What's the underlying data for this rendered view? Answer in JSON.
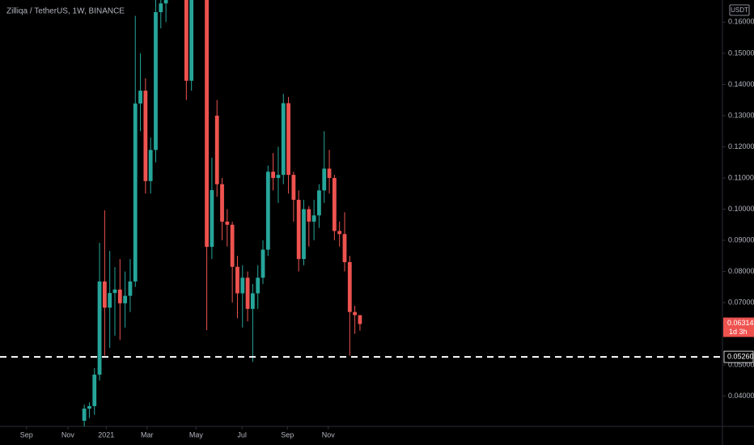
{
  "chart_data": {
    "type": "candlestick",
    "title": "Zilliqa / TetherUS, 1W, BINANCE",
    "currency": "USDT",
    "up_color": "#26a69a",
    "down_color": "#ef5350",
    "x": [
      16,
      17,
      18,
      19,
      20,
      21,
      22,
      23,
      24,
      25,
      26,
      27,
      28,
      29,
      30,
      31,
      32,
      36,
      37,
      40,
      41,
      42,
      43,
      44,
      45,
      46,
      47,
      48,
      49,
      50,
      51,
      52,
      53,
      54,
      55,
      56,
      57,
      58,
      59,
      60,
      61,
      62,
      63,
      64,
      65,
      66,
      67,
      68,
      69,
      70
    ],
    "open": [
      0.0321,
      0.036,
      0.0368,
      0.0469,
      0.0768,
      0.0684,
      0.0731,
      0.0742,
      0.0698,
      0.0722,
      0.0768,
      0.1339,
      0.138,
      0.109,
      0.119,
      0.1632,
      0.166,
      0.175,
      0.1412,
      0.175,
      0.0879,
      0.13,
      0.108,
      0.096,
      0.095,
      0.0815,
      0.073,
      0.078,
      0.068,
      0.073,
      0.078,
      0.087,
      0.112,
      0.11,
      0.111,
      0.134,
      0.111,
      0.103,
      0.084,
      0.1,
      0.096,
      0.098,
      0.106,
      0.113,
      0.11,
      0.093,
      0.092,
      0.083,
      0.067,
      0.066
    ],
    "high": [
      0.0373,
      0.038,
      0.049,
      0.0892,
      0.0996,
      0.0866,
      0.0814,
      0.084,
      0.08,
      0.084,
      0.162,
      0.15,
      0.142,
      0.123,
      0.17,
      0.175,
      0.18,
      0.18,
      0.18,
      0.18,
      0.1165,
      0.135,
      0.11,
      0.1,
      0.096,
      0.085,
      0.082,
      0.08,
      0.076,
      0.082,
      0.09,
      0.114,
      0.118,
      0.12,
      0.137,
      0.136,
      0.112,
      0.106,
      0.103,
      0.101,
      0.103,
      0.108,
      0.125,
      0.119,
      0.111,
      0.096,
      0.099,
      0.085,
      0.069,
      0.066
    ],
    "low": [
      0.03,
      0.033,
      0.034,
      0.045,
      0.053,
      0.0555,
      0.0594,
      0.058,
      0.062,
      0.067,
      0.075,
      0.125,
      0.105,
      0.105,
      0.115,
      0.158,
      0.16,
      0.135,
      0.138,
      0.0612,
      0.084,
      0.104,
      0.09,
      0.088,
      0.07,
      0.065,
      0.062,
      0.064,
      0.051,
      0.068,
      0.076,
      0.085,
      0.106,
      0.102,
      0.108,
      0.105,
      0.096,
      0.08,
      0.082,
      0.088,
      0.09,
      0.094,
      0.102,
      0.105,
      0.09,
      0.088,
      0.08,
      0.053,
      0.06,
      0.061
    ],
    "close": [
      0.036,
      0.0368,
      0.0469,
      0.0768,
      0.0684,
      0.0731,
      0.0742,
      0.0698,
      0.0722,
      0.0768,
      0.1339,
      0.138,
      0.109,
      0.119,
      0.1632,
      0.166,
      0.17,
      0.1412,
      0.17,
      0.0879,
      0.1061,
      0.108,
      0.096,
      0.095,
      0.0815,
      0.073,
      0.078,
      0.068,
      0.073,
      0.078,
      0.087,
      0.112,
      0.11,
      0.111,
      0.134,
      0.111,
      0.103,
      0.084,
      0.1,
      0.096,
      0.098,
      0.106,
      0.113,
      0.11,
      0.093,
      0.092,
      0.083,
      0.067,
      0.066,
      0.06314
    ],
    "xlim": [
      -0.5,
      141
    ],
    "xticks": [
      {
        "value": 4.7,
        "label": "Sep"
      },
      {
        "value": 12.8,
        "label": "Nov"
      },
      {
        "value": 20.3,
        "label": "2021"
      },
      {
        "value": 28.3,
        "label": "Mar"
      },
      {
        "value": 37.9,
        "label": "May"
      },
      {
        "value": 46.9,
        "label": "Jul"
      },
      {
        "value": 55.8,
        "label": "Sep"
      },
      {
        "value": 63.8,
        "label": "Nov"
      }
    ],
    "ylim": [
      0.0303,
      0.1671
    ],
    "yticks": [
      {
        "value": 0.04,
        "label": "0.04000"
      },
      {
        "value": 0.05,
        "label": "0.05000"
      },
      {
        "value": 0.07,
        "label": "0.07000"
      },
      {
        "value": 0.08,
        "label": "0.08000"
      },
      {
        "value": 0.09,
        "label": "0.09000"
      },
      {
        "value": 0.1,
        "label": "0.10000"
      },
      {
        "value": 0.11,
        "label": "0.11000"
      },
      {
        "value": 0.12,
        "label": "0.12000"
      },
      {
        "value": 0.13,
        "label": "0.13000"
      },
      {
        "value": 0.14,
        "label": "0.14000"
      },
      {
        "value": 0.15,
        "label": "0.15000"
      },
      {
        "value": 0.16,
        "label": "0.16000"
      }
    ],
    "hline": {
      "value": 0.0526,
      "label": "0.05260"
    },
    "last_price": {
      "value": 0.06314,
      "label": "0.06314"
    },
    "countdown": "1d 3h"
  }
}
